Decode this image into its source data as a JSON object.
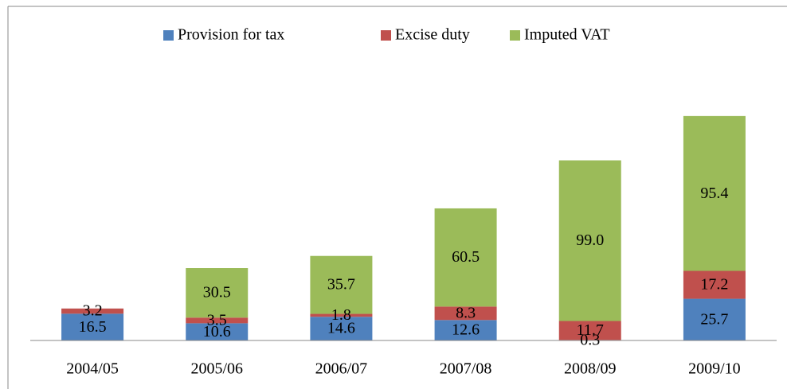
{
  "chart_data": {
    "type": "stacked-bar",
    "categories": [
      "2004/05",
      "2005/06",
      "2006/07",
      "2007/08",
      "2008/09",
      "2009/10"
    ],
    "series": [
      {
        "name": "Provision for tax",
        "color": "#4f81bd",
        "values": [
          16.5,
          10.6,
          14.6,
          12.6,
          0.3,
          25.7
        ]
      },
      {
        "name": "Excise duty",
        "color": "#c0504d",
        "values": [
          3.2,
          3.5,
          1.8,
          8.3,
          11.7,
          17.2
        ]
      },
      {
        "name": "Imputed VAT",
        "color": "#9bbb59",
        "values": [
          null,
          30.5,
          35.7,
          60.5,
          99,
          95.4
        ],
        "value_labels": [
          null,
          "30.5",
          "35.7",
          "60.5",
          "99.0",
          "95.4"
        ]
      }
    ],
    "legend": "top"
  }
}
